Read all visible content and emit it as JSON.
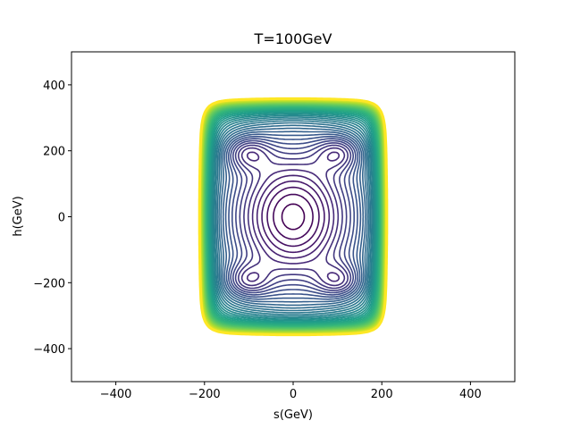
{
  "chart_data": {
    "type": "contour",
    "title": "T=100GeV",
    "xlabel": "s(GeV)",
    "ylabel": "h(GeV)",
    "xlim": [
      -500,
      500
    ],
    "ylim": [
      -500,
      500
    ],
    "xticks": [
      -400,
      -200,
      0,
      200,
      400
    ],
    "yticks": [
      -400,
      -200,
      0,
      200,
      400
    ],
    "xtick_labels": [
      "−400",
      "−200",
      "0",
      "200",
      "400"
    ],
    "ytick_labels": [
      "−400",
      "−200",
      "0",
      "200",
      "400"
    ],
    "grid": false,
    "colormap": "viridis",
    "levels": 44,
    "minima": [
      {
        "s": 0,
        "h": 0
      },
      {
        "s": -105,
        "h": 195
      },
      {
        "s": 105,
        "h": 195
      },
      {
        "s": -105,
        "h": -195
      },
      {
        "s": 105,
        "h": -195
      }
    ],
    "outer_contour_extent": {
      "s": [
        -215,
        215
      ],
      "h": [
        -365,
        365
      ]
    }
  }
}
